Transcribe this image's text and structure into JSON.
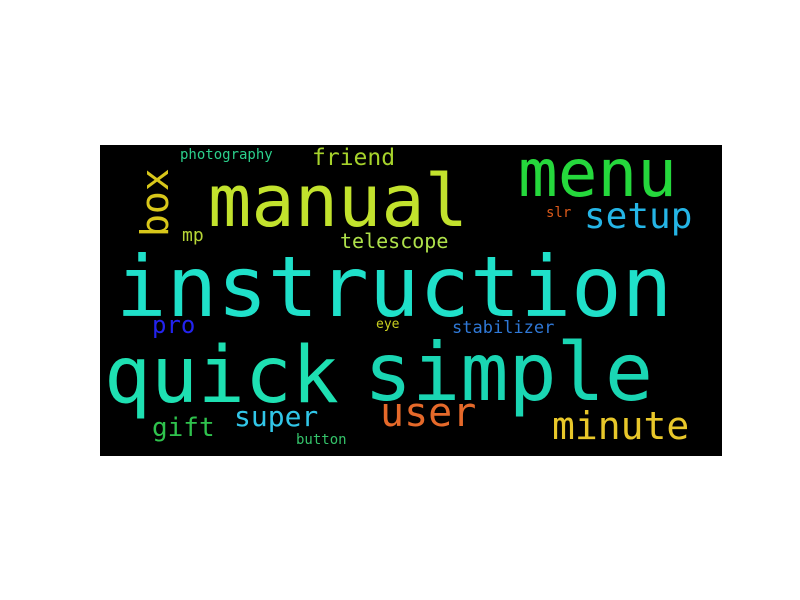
{
  "wordcloud": {
    "background": "#000000",
    "words": {
      "instruction": {
        "text": "instruction",
        "color": "#1fe0c9"
      },
      "quick": {
        "text": "quick",
        "color": "#1ee0b2"
      },
      "simple": {
        "text": "simple",
        "color": "#1ad6b3"
      },
      "manual": {
        "text": "manual",
        "color": "#c2e22d"
      },
      "menu": {
        "text": "menu",
        "color": "#25d83c"
      },
      "setup": {
        "text": "setup",
        "color": "#25b5e6"
      },
      "box": {
        "text": "box",
        "color": "#d8c71a"
      },
      "user": {
        "text": "user",
        "color": "#e5692a"
      },
      "minute": {
        "text": "minute",
        "color": "#e8c72a"
      },
      "super": {
        "text": "super",
        "color": "#31c6e8"
      },
      "gift": {
        "text": "gift",
        "color": "#2fc24d"
      },
      "pro": {
        "text": "pro",
        "color": "#2323ee"
      },
      "telescope": {
        "text": "telescope",
        "color": "#aee04a"
      },
      "friend": {
        "text": "friend",
        "color": "#a6d22b"
      },
      "photography": {
        "text": "photography",
        "color": "#2bd08c"
      },
      "mp": {
        "text": "mp",
        "color": "#b7d637"
      },
      "stabilizer": {
        "text": "stabilizer",
        "color": "#2f78d6"
      },
      "eye": {
        "text": "eye",
        "color": "#c9cf20"
      },
      "slr": {
        "text": "slr",
        "color": "#dd5a1a"
      },
      "button": {
        "text": "button",
        "color": "#34c36a"
      }
    }
  }
}
